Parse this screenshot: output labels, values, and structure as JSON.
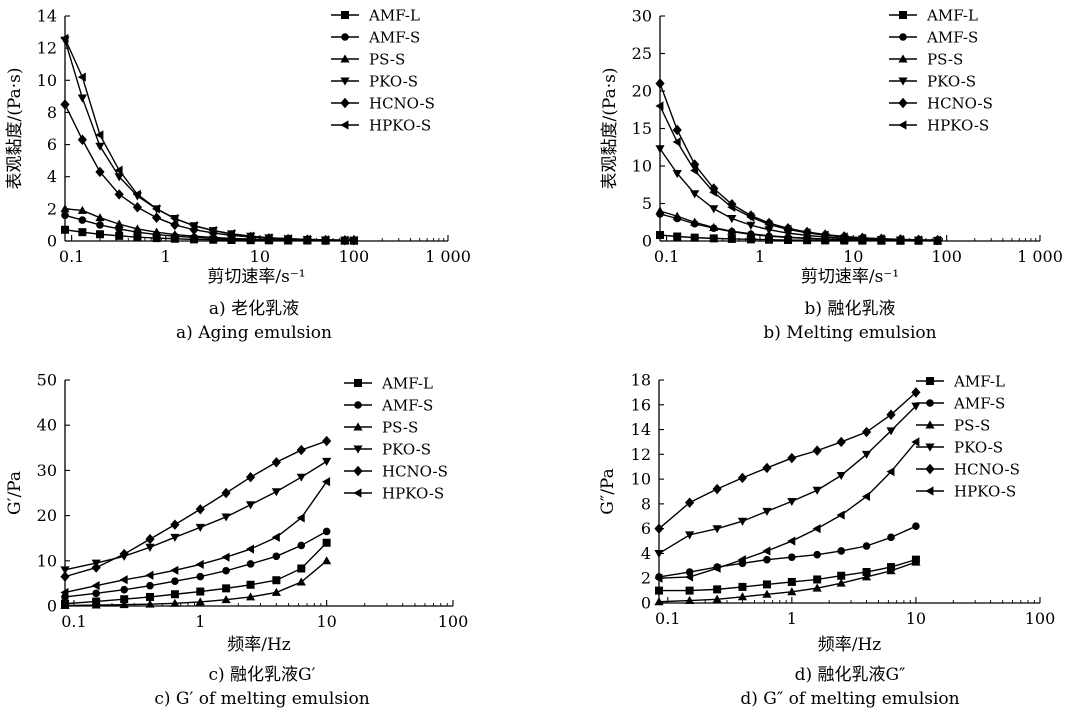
{
  "chart_data": [
    {
      "panel": "a",
      "type": "line",
      "xscale": "log",
      "xlim": [
        0.085,
        1000
      ],
      "ylim": [
        0,
        14
      ],
      "xticks": [
        "0.1",
        "1",
        "10",
        "100",
        "1 000"
      ],
      "yticks": [
        "0",
        "2",
        "4",
        "6",
        "8",
        "10",
        "12",
        "14"
      ],
      "xlabel": "剪切速率/s⁻¹",
      "ylabel": "表观黏度/(Pa·s)",
      "caption_cn": "a) 老化乳液",
      "caption_en": "a) Aging emulsion",
      "legend_position": "top-right",
      "x": [
        0.085,
        0.13,
        0.2,
        0.32,
        0.5,
        0.8,
        1.25,
        2.0,
        3.2,
        5.0,
        8.0,
        12.5,
        20,
        32,
        50,
        80,
        100
      ],
      "series": [
        {
          "name": "AMF-L",
          "marker": "square",
          "values": [
            0.7,
            0.55,
            0.42,
            0.32,
            0.24,
            0.18,
            0.14,
            0.1,
            0.08,
            0.06,
            0.05,
            0.04,
            0.03,
            0.03,
            0.02,
            0.02,
            0.02
          ]
        },
        {
          "name": "AMF-S",
          "marker": "circle",
          "values": [
            1.6,
            1.3,
            1.0,
            0.75,
            0.55,
            0.4,
            0.3,
            0.22,
            0.16,
            0.12,
            0.09,
            0.07,
            0.05,
            0.04,
            0.03,
            0.03,
            0.02
          ]
        },
        {
          "name": "PS-S",
          "marker": "triangle-up",
          "values": [
            2.0,
            1.9,
            1.45,
            1.05,
            0.75,
            0.55,
            0.4,
            0.3,
            0.22,
            0.16,
            0.12,
            0.09,
            0.07,
            0.05,
            0.04,
            0.03,
            0.03
          ]
        },
        {
          "name": "PKO-S",
          "marker": "triangle-down",
          "values": [
            12.5,
            8.9,
            5.9,
            4.0,
            2.8,
            2.0,
            1.4,
            0.95,
            0.65,
            0.45,
            0.3,
            0.2,
            0.14,
            0.1,
            0.07,
            0.05,
            0.04
          ]
        },
        {
          "name": "HCNO-S",
          "marker": "diamond",
          "values": [
            8.5,
            6.3,
            4.3,
            2.9,
            2.1,
            1.45,
            1.0,
            0.7,
            0.5,
            0.35,
            0.25,
            0.17,
            0.12,
            0.09,
            0.06,
            0.05,
            0.04
          ]
        },
        {
          "name": "HPKO-S",
          "marker": "triangle-left",
          "values": [
            12.6,
            10.2,
            6.6,
            4.4,
            2.9,
            2.0,
            1.4,
            0.95,
            0.65,
            0.45,
            0.3,
            0.2,
            0.14,
            0.1,
            0.07,
            0.05,
            0.04
          ]
        }
      ]
    },
    {
      "panel": "b",
      "type": "line",
      "xscale": "log",
      "xlim": [
        0.085,
        1000
      ],
      "ylim": [
        0,
        30
      ],
      "xticks": [
        "0.1",
        "1",
        "10",
        "100",
        "1 000"
      ],
      "yticks": [
        "0",
        "5",
        "10",
        "15",
        "20",
        "25",
        "30"
      ],
      "xlabel": "剪切速率/s⁻¹",
      "ylabel": "表观黏度/(Pa·s)",
      "caption_cn": "b) 融化乳液",
      "caption_en": "b) Melting emulsion",
      "legend_position": "top-right",
      "x": [
        0.085,
        0.13,
        0.2,
        0.32,
        0.5,
        0.8,
        1.25,
        2.0,
        3.2,
        5.0,
        8.0,
        12.5,
        20,
        32,
        50,
        80
      ],
      "series": [
        {
          "name": "AMF-L",
          "marker": "square",
          "values": [
            0.8,
            0.6,
            0.45,
            0.35,
            0.28,
            0.22,
            0.17,
            0.13,
            0.1,
            0.08,
            0.06,
            0.05,
            0.04,
            0.03,
            0.03,
            0.02
          ]
        },
        {
          "name": "AMF-S",
          "marker": "circle",
          "values": [
            3.6,
            3.0,
            2.3,
            1.7,
            1.25,
            0.9,
            0.65,
            0.48,
            0.35,
            0.26,
            0.19,
            0.14,
            0.1,
            0.08,
            0.06,
            0.05
          ]
        },
        {
          "name": "PS-S",
          "marker": "triangle-up",
          "values": [
            4.0,
            3.3,
            2.5,
            1.8,
            1.3,
            0.95,
            0.7,
            0.5,
            0.37,
            0.27,
            0.2,
            0.15,
            0.11,
            0.08,
            0.06,
            0.05
          ]
        },
        {
          "name": "PKO-S",
          "marker": "triangle-down",
          "values": [
            12.3,
            9.0,
            6.3,
            4.3,
            3.0,
            2.1,
            1.5,
            1.05,
            0.75,
            0.53,
            0.38,
            0.27,
            0.2,
            0.14,
            0.1,
            0.08
          ]
        },
        {
          "name": "HCNO-S",
          "marker": "diamond",
          "values": [
            21.0,
            14.8,
            10.2,
            7.0,
            4.9,
            3.4,
            2.4,
            1.7,
            1.2,
            0.85,
            0.6,
            0.43,
            0.31,
            0.22,
            0.16,
            0.12
          ]
        },
        {
          "name": "HPKO-S",
          "marker": "triangle-left",
          "values": [
            18.0,
            13.2,
            9.4,
            6.5,
            4.5,
            3.2,
            2.2,
            1.55,
            1.1,
            0.78,
            0.55,
            0.39,
            0.28,
            0.2,
            0.14,
            0.1
          ]
        }
      ]
    },
    {
      "panel": "c",
      "type": "line",
      "xscale": "log",
      "xlim": [
        0.085,
        100
      ],
      "ylim": [
        0,
        50
      ],
      "xticks": [
        "0.1",
        "1",
        "10",
        "100"
      ],
      "yticks": [
        "0",
        "10",
        "20",
        "30",
        "40",
        "50"
      ],
      "xlabel": "频率/Hz",
      "ylabel": "G′/Pa",
      "caption_cn": "c) 融化乳液G′",
      "caption_en": "c) G′ of melting emulsion",
      "legend_position": "top-right",
      "x": [
        0.085,
        0.15,
        0.25,
        0.4,
        0.63,
        1.0,
        1.6,
        2.5,
        4.0,
        6.3,
        10
      ],
      "series": [
        {
          "name": "AMF-L",
          "marker": "square",
          "values": [
            0.5,
            1.0,
            1.5,
            2.0,
            2.6,
            3.2,
            3.9,
            4.7,
            5.7,
            8.3,
            14.0
          ]
        },
        {
          "name": "AMF-S",
          "marker": "circle",
          "values": [
            2.0,
            2.8,
            3.6,
            4.5,
            5.5,
            6.5,
            7.8,
            9.3,
            11.0,
            13.4,
            16.5
          ]
        },
        {
          "name": "PS-S",
          "marker": "triangle-up",
          "values": [
            0.1,
            0.2,
            0.3,
            0.4,
            0.6,
            0.9,
            1.4,
            2.0,
            3.0,
            5.3,
            10.0
          ]
        },
        {
          "name": "PKO-S",
          "marker": "triangle-down",
          "values": [
            8.0,
            9.5,
            11.0,
            13.0,
            15.2,
            17.4,
            19.7,
            22.4,
            25.3,
            28.5,
            32.0
          ]
        },
        {
          "name": "HCNO-S",
          "marker": "diamond",
          "values": [
            6.5,
            8.5,
            11.5,
            14.8,
            18.0,
            21.4,
            25.0,
            28.5,
            31.8,
            34.5,
            36.5
          ]
        },
        {
          "name": "HPKO-S",
          "marker": "triangle-left",
          "values": [
            3.0,
            4.5,
            5.8,
            6.8,
            7.9,
            9.2,
            10.8,
            12.6,
            15.2,
            19.5,
            27.5
          ]
        }
      ]
    },
    {
      "panel": "d",
      "type": "line",
      "xscale": "log",
      "xlim": [
        0.085,
        100
      ],
      "ylim": [
        0,
        18
      ],
      "xticks": [
        "0.1",
        "1",
        "10",
        "100"
      ],
      "yticks": [
        "0",
        "2",
        "4",
        "6",
        "8",
        "10",
        "12",
        "14",
        "16",
        "18"
      ],
      "xlabel": "频率/Hz",
      "ylabel": "G″/Pa",
      "caption_cn": "d) 融化乳液G″",
      "caption_en": "d) G″ of melting emulsion",
      "legend_position": "top-right",
      "x": [
        0.085,
        0.15,
        0.25,
        0.4,
        0.63,
        1.0,
        1.6,
        2.5,
        4.0,
        6.3,
        10
      ],
      "series": [
        {
          "name": "AMF-L",
          "marker": "square",
          "values": [
            1.0,
            1.0,
            1.1,
            1.3,
            1.5,
            1.7,
            1.9,
            2.2,
            2.5,
            2.9,
            3.5
          ]
        },
        {
          "name": "AMF-S",
          "marker": "circle",
          "values": [
            2.1,
            2.5,
            2.9,
            3.2,
            3.5,
            3.7,
            3.9,
            4.2,
            4.6,
            5.3,
            6.2
          ]
        },
        {
          "name": "PS-S",
          "marker": "triangle-up",
          "values": [
            0.1,
            0.2,
            0.3,
            0.5,
            0.7,
            0.9,
            1.2,
            1.6,
            2.1,
            2.6,
            3.3
          ]
        },
        {
          "name": "PKO-S",
          "marker": "triangle-down",
          "values": [
            4.0,
            5.5,
            6.0,
            6.6,
            7.4,
            8.2,
            9.1,
            10.3,
            12.0,
            13.9,
            15.9
          ]
        },
        {
          "name": "HCNO-S",
          "marker": "diamond",
          "values": [
            6.0,
            8.1,
            9.2,
            10.1,
            10.9,
            11.7,
            12.3,
            13.0,
            13.8,
            15.2,
            17.0
          ]
        },
        {
          "name": "HPKO-S",
          "marker": "triangle-left",
          "values": [
            2.0,
            2.1,
            2.8,
            3.5,
            4.2,
            5.0,
            6.0,
            7.1,
            8.6,
            10.6,
            13.0
          ]
        }
      ]
    }
  ]
}
